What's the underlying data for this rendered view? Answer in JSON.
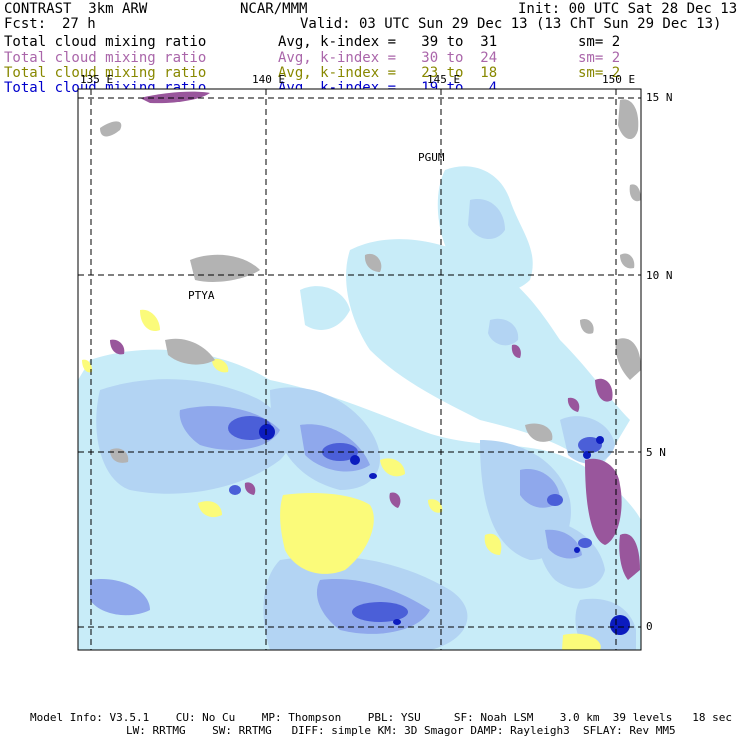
{
  "header": {
    "model": "CONTRAST  3km ARW",
    "org": "NCAR/MMM",
    "init": "Init: 00 UTC Sat 28 Dec 13",
    "fcst_label": "Fcst:",
    "fcst_value": "27 h",
    "valid": "Valid: 03 UTC Sun 29 Dec 13 (13 ChT Sun 29 Dec 13)"
  },
  "legend": [
    {
      "name": "Total cloud mixing ratio",
      "kindex": "Avg, k-index =   39 to  31",
      "sm": "sm= 2",
      "color": "#000000"
    },
    {
      "name": "Total cloud mixing ratio",
      "kindex": "Avg, k-index =   30 to  24",
      "sm": "sm= 2",
      "color": "#aa66aa"
    },
    {
      "name": "Total cloud mixing ratio",
      "kindex": "Avg, k-index =   23 to  18",
      "sm": "sm= 2",
      "color": "#888800"
    },
    {
      "name": "Total cloud mixing ratio",
      "kindex": "Avg, k-index =   19 to   4",
      "sm": "",
      "color": "#0000cc"
    }
  ],
  "map": {
    "lon_labels": [
      "135 E",
      "140 E",
      "145 E",
      "150 E"
    ],
    "lat_labels": [
      "15 N",
      "10 N",
      "5 N",
      "0"
    ],
    "stations": [
      "PGUM",
      "PTYA"
    ],
    "colors": {
      "sky": "#c8ecf8",
      "light_blue": "#b3d4f3",
      "mid_blue": "#8fa8ec",
      "dark_blue": "#4b5fd8",
      "deep_blue": "#0b1bbf",
      "yellow": "#fbfb7a",
      "purple": "#99569c",
      "gray": "#b3b3b3"
    }
  },
  "footer": {
    "line1": "Model Info: V3.5.1    CU: No Cu    MP: Thompson    PBL: YSU     SF: Noah LSM    3.0 km  39 levels   18 sec",
    "line2": "LW: RRTMG    SW: RRTMG   DIFF: simple KM: 3D Smagor DAMP: Rayleigh3  SFLAY: Rev MM5"
  }
}
